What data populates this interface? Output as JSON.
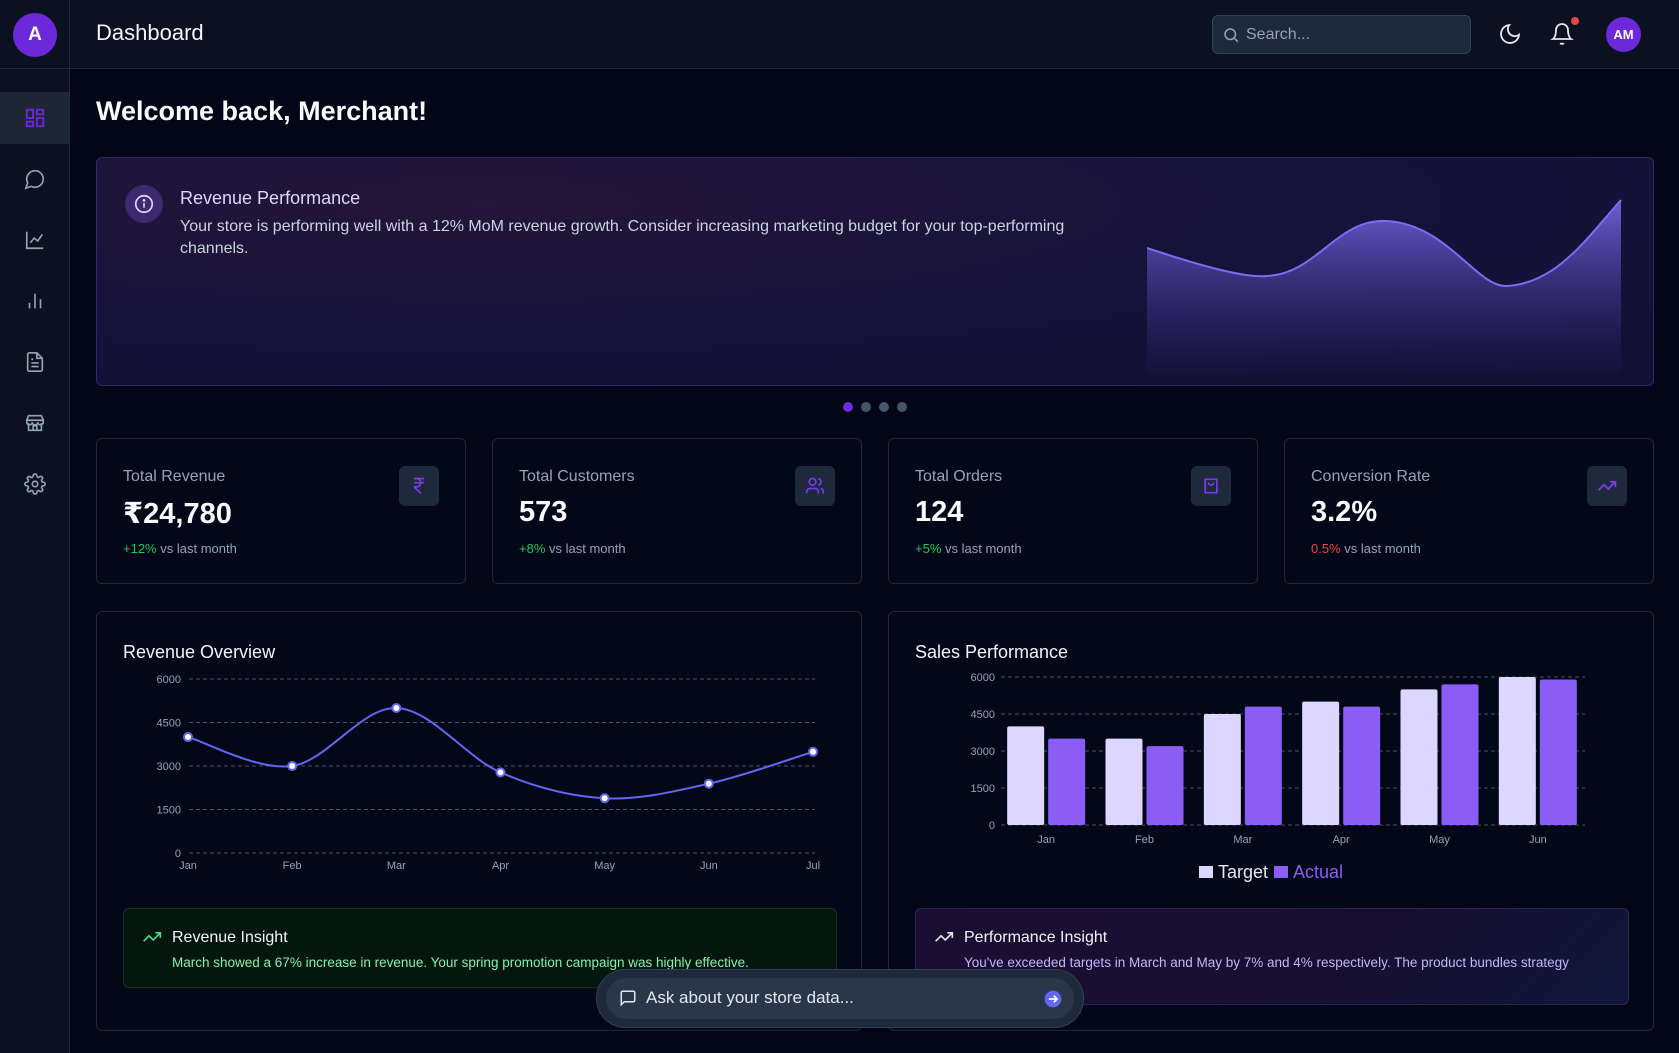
{
  "app": {
    "logo_letter": "A",
    "page_title": "Dashboard",
    "accent": "#6d28d9"
  },
  "header": {
    "search_placeholder": "Search...",
    "user_initials": "AM",
    "icons": [
      "search-icon",
      "moon-icon",
      "bell-icon"
    ],
    "notification_dot_color": "#ef4444"
  },
  "sidebar": {
    "items": [
      {
        "name": "dashboard-icon",
        "active": true
      },
      {
        "name": "chat-icon",
        "active": false
      },
      {
        "name": "line-chart-icon",
        "active": false
      },
      {
        "name": "bar-chart-icon",
        "active": false
      },
      {
        "name": "document-icon",
        "active": false
      },
      {
        "name": "store-icon",
        "active": false
      },
      {
        "name": "gear-icon",
        "active": false
      }
    ]
  },
  "welcome": "Welcome back, Merchant!",
  "hero": {
    "title": "Revenue Performance",
    "text": "Your store is performing well with a 12% MoM revenue growth. Consider increasing marketing budget for your top-performing channels.",
    "carousel_count": 4,
    "carousel_active": 0
  },
  "stats": [
    {
      "label": "Total Revenue",
      "value": "₹24,780",
      "change": "+12%",
      "change_positive": true,
      "suffix": "vs last month",
      "icon": "rupee-icon"
    },
    {
      "label": "Total Customers",
      "value": "573",
      "change": "+8%",
      "change_positive": true,
      "suffix": "vs last month",
      "icon": "users-icon"
    },
    {
      "label": "Total Orders",
      "value": "124",
      "change": "+5%",
      "change_positive": true,
      "suffix": "vs last month",
      "icon": "shopping-bag-icon"
    },
    {
      "label": "Conversion Rate",
      "value": "3.2%",
      "change": "0.5%",
      "change_positive": false,
      "suffix": "vs last month",
      "icon": "trending-up-icon"
    }
  ],
  "revenue_panel": {
    "title": "Revenue Overview",
    "insight_title": "Revenue Insight",
    "insight_text": "March showed a 67% increase in revenue. Your spring promotion campaign was highly effective."
  },
  "sales_panel": {
    "title": "Sales Performance",
    "insight_title": "Performance Insight",
    "insight_text": "You've exceeded targets in March and May by 7% and 4% respectively. The product bundles strategy"
  },
  "ask": {
    "placeholder": "Ask about your store data..."
  },
  "chart_data": [
    {
      "type": "line",
      "title": "Revenue Overview",
      "x": [
        "Jan",
        "Feb",
        "Mar",
        "Apr",
        "May",
        "Jun",
        "Jul"
      ],
      "series": [
        {
          "values": [
            4000,
            3000,
            5000,
            2780,
            1890,
            2390,
            3490
          ]
        }
      ],
      "yticks": [
        0,
        1500,
        3000,
        4500,
        6000
      ],
      "ylim": [
        0,
        6000
      ],
      "grid": true,
      "color": "#6366f1"
    },
    {
      "type": "bar",
      "title": "Sales Performance",
      "categories": [
        "Jan",
        "Feb",
        "Mar",
        "Apr",
        "May",
        "Jun"
      ],
      "series": [
        {
          "name": "Target",
          "values": [
            4000,
            3500,
            4500,
            5000,
            5500,
            6000
          ],
          "color": "#ddd6fe"
        },
        {
          "name": "Actual",
          "values": [
            3500,
            3200,
            4800,
            4800,
            5700,
            5900
          ],
          "color": "#8b5cf6"
        }
      ],
      "yticks": [
        0,
        1500,
        3000,
        4500,
        6000
      ],
      "ylim": [
        0,
        6000
      ],
      "grid": true,
      "legend": "bottom"
    }
  ]
}
